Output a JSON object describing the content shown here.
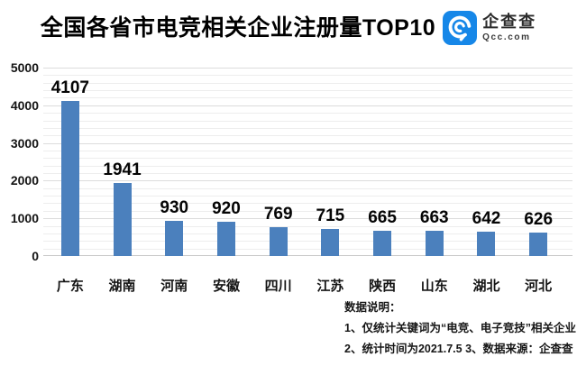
{
  "header": {
    "title": "全国各省市电竞相关企业注册量TOP10",
    "logo": {
      "name": "企查查",
      "domain": "Qcc.com",
      "brand_color": "#1687e8",
      "icon": "qcc-magnifier-icon"
    }
  },
  "chart_data": {
    "type": "bar",
    "title": "全国各省市电竞相关企业注册量TOP10",
    "categories": [
      "广东",
      "湖南",
      "河南",
      "安徽",
      "四川",
      "江苏",
      "陕西",
      "山东",
      "湖北",
      "河北"
    ],
    "values": [
      4107,
      1941,
      930,
      920,
      769,
      715,
      665,
      663,
      642,
      626
    ],
    "xlabel": "",
    "ylabel": "",
    "ylim": [
      0,
      5000
    ],
    "y_ticks": [
      0,
      1000,
      2000,
      3000,
      4000,
      5000
    ],
    "minor_grid_step": 200,
    "grid": true,
    "legend": false,
    "bar_color": "#4b80bd",
    "value_labels": true
  },
  "notes": {
    "heading": "数据说明：",
    "lines": [
      "1、仅统计关键词为“电竞、电子竞技”相关企业",
      "2、统计时间为2021.7.5 3、数据来源：企查查"
    ]
  }
}
